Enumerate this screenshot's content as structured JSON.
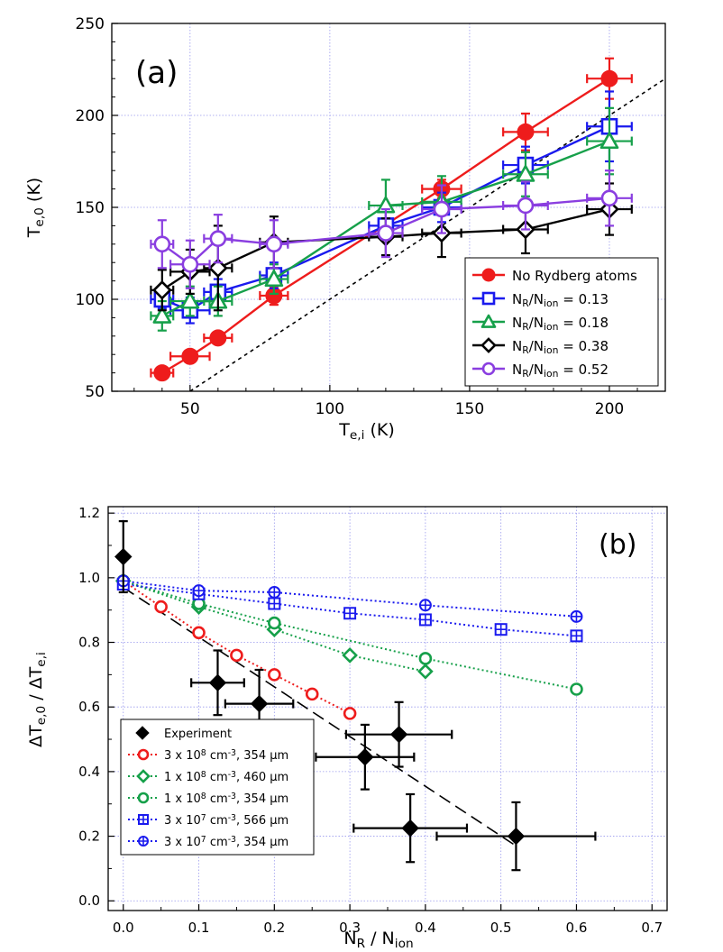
{
  "chart_data": [
    {
      "type": "scatter",
      "panel_label": "(a)",
      "xlabel": {
        "main": "T",
        "sub": "e,i",
        "unit": " (K)"
      },
      "ylabel": {
        "main": "T",
        "sub": "e,0",
        "unit": " (K)"
      },
      "xlim": [
        22,
        220
      ],
      "ylim": [
        50,
        250
      ],
      "xticks": [
        50,
        100,
        150,
        200
      ],
      "yticks": [
        50,
        100,
        150,
        200,
        250
      ],
      "grid": true,
      "legend_position": "bottom-right",
      "reference_line": {
        "style": "dashed",
        "slope": 1,
        "intercept": 0
      },
      "series": [
        {
          "name": "No Rydberg atoms",
          "label_parts": [
            "No Rydberg atoms"
          ],
          "color": "#ee1c1c",
          "marker": "circle-filled",
          "points": [
            {
              "x": 40,
              "y": 60,
              "xerr": 4,
              "yerr": 3
            },
            {
              "x": 50,
              "y": 69,
              "xerr": 7,
              "yerr": 3
            },
            {
              "x": 60,
              "y": 79,
              "xerr": 5,
              "yerr": 3
            },
            {
              "x": 80,
              "y": 102,
              "xerr": 5,
              "yerr": 5
            },
            {
              "x": 140,
              "y": 160,
              "xerr": 7,
              "yerr": 5
            },
            {
              "x": 170,
              "y": 191,
              "xerr": 8,
              "yerr": 10
            },
            {
              "x": 200,
              "y": 220,
              "xerr": 8,
              "yerr": 11
            }
          ]
        },
        {
          "name": "N_R/N_ion = 0.13",
          "label_parts": [
            "N",
            "R",
            "/N",
            "ion",
            " = 0.13"
          ],
          "color": "#1a1aee",
          "marker": "square-open",
          "points": [
            {
              "x": 40,
              "y": 100,
              "xerr": 4,
              "yerr": 5
            },
            {
              "x": 50,
              "y": 94,
              "xerr": 7,
              "yerr": 7
            },
            {
              "x": 60,
              "y": 104,
              "xerr": 5,
              "yerr": 7
            },
            {
              "x": 80,
              "y": 113,
              "xerr": 5,
              "yerr": 7
            },
            {
              "x": 120,
              "y": 140,
              "xerr": 6,
              "yerr": 8
            },
            {
              "x": 140,
              "y": 150,
              "xerr": 7,
              "yerr": 8
            },
            {
              "x": 170,
              "y": 173,
              "xerr": 8,
              "yerr": 10
            },
            {
              "x": 200,
              "y": 194,
              "xerr": 8,
              "yerr": 19
            }
          ]
        },
        {
          "name": "N_R/N_ion = 0.18",
          "label_parts": [
            "N",
            "R",
            "/N",
            "ion",
            " = 0.18"
          ],
          "color": "#16a04a",
          "marker": "triangle-open",
          "points": [
            {
              "x": 40,
              "y": 91,
              "xerr": 4,
              "yerr": 8
            },
            {
              "x": 50,
              "y": 99,
              "xerr": 7,
              "yerr": 8
            },
            {
              "x": 60,
              "y": 99,
              "xerr": 5,
              "yerr": 8
            },
            {
              "x": 80,
              "y": 111,
              "xerr": 5,
              "yerr": 8
            },
            {
              "x": 120,
              "y": 151,
              "xerr": 6,
              "yerr": 14
            },
            {
              "x": 140,
              "y": 153,
              "xerr": 7,
              "yerr": 14
            },
            {
              "x": 170,
              "y": 168,
              "xerr": 8,
              "yerr": 12
            },
            {
              "x": 200,
              "y": 186,
              "xerr": 8,
              "yerr": 18
            }
          ]
        },
        {
          "name": "N_R/N_ion = 0.38",
          "label_parts": [
            "N",
            "R",
            "/N",
            "ion",
            " = 0.38"
          ],
          "color": "#000000",
          "marker": "diamond-open",
          "points": [
            {
              "x": 40,
              "y": 105,
              "xerr": 4,
              "yerr": 11
            },
            {
              "x": 50,
              "y": 115,
              "xerr": 7,
              "yerr": 12
            },
            {
              "x": 60,
              "y": 117,
              "xerr": 5,
              "yerr": 23
            },
            {
              "x": 80,
              "y": 131,
              "xerr": 5,
              "yerr": 14
            },
            {
              "x": 120,
              "y": 134,
              "xerr": 6,
              "yerr": 10
            },
            {
              "x": 140,
              "y": 136,
              "xerr": 7,
              "yerr": 13
            },
            {
              "x": 170,
              "y": 138,
              "xerr": 8,
              "yerr": 13
            },
            {
              "x": 200,
              "y": 149,
              "xerr": 8,
              "yerr": 14
            }
          ]
        },
        {
          "name": "N_R/N_ion = 0.52",
          "label_parts": [
            "N",
            "R",
            "/N",
            "ion",
            " = 0.52"
          ],
          "color": "#8a3ee0",
          "marker": "circle-open",
          "points": [
            {
              "x": 40,
              "y": 130,
              "xerr": 4,
              "yerr": 13
            },
            {
              "x": 50,
              "y": 119,
              "xerr": 7,
              "yerr": 13
            },
            {
              "x": 60,
              "y": 133,
              "xerr": 5,
              "yerr": 13
            },
            {
              "x": 80,
              "y": 130,
              "xerr": 5,
              "yerr": 13
            },
            {
              "x": 120,
              "y": 136,
              "xerr": 6,
              "yerr": 13
            },
            {
              "x": 140,
              "y": 149,
              "xerr": 7,
              "yerr": 13
            },
            {
              "x": 170,
              "y": 151,
              "xerr": 8,
              "yerr": 13
            },
            {
              "x": 200,
              "y": 155,
              "xerr": 8,
              "yerr": 15
            }
          ]
        }
      ]
    },
    {
      "type": "scatter",
      "panel_label": "(b)",
      "xlabel": {
        "parts": [
          "N",
          "R",
          " / N",
          "ion"
        ]
      },
      "ylabel": {
        "parts": [
          "ΔT",
          "e,0",
          " / ΔT",
          "e,i"
        ]
      },
      "xlim": [
        -0.02,
        0.72
      ],
      "ylim": [
        -0.03,
        1.22
      ],
      "xticks": [
        "0.0",
        "0.1",
        "0.2",
        "0.3",
        "0.4",
        "0.5",
        "0.6",
        "0.7"
      ],
      "yticks": [
        "0.0",
        "0.2",
        "0.4",
        "0.6",
        "0.8",
        "1.0",
        "1.2"
      ],
      "grid": true,
      "legend_position": "bottom-left",
      "fit_line": {
        "style": "dashed",
        "x": [
          0.0,
          0.52
        ],
        "y": [
          0.97,
          0.17
        ]
      },
      "experiment": {
        "name": "Experiment",
        "color": "#000000",
        "marker": "diamond-filled",
        "points": [
          {
            "x": 0.0,
            "y": 1.065,
            "xerr": 0.0,
            "yerr": 0.11
          },
          {
            "x": 0.125,
            "y": 0.675,
            "xerr": 0.035,
            "yerr": 0.1
          },
          {
            "x": 0.18,
            "y": 0.61,
            "xerr": 0.045,
            "yerr": 0.105
          },
          {
            "x": 0.32,
            "y": 0.445,
            "xerr": 0.065,
            "yerr": 0.1
          },
          {
            "x": 0.365,
            "y": 0.515,
            "xerr": 0.07,
            "yerr": 0.1
          },
          {
            "x": 0.38,
            "y": 0.225,
            "xerr": 0.075,
            "yerr": 0.105
          },
          {
            "x": 0.52,
            "y": 0.2,
            "xerr": 0.105,
            "yerr": 0.105
          }
        ]
      },
      "series": [
        {
          "name": "3 x 10^8 cm^-3, 354 μm",
          "label_parts": [
            "3 x 10",
            "8",
            " cm",
            "-3",
            ", 354 μm"
          ],
          "color": "#ee1c1c",
          "marker": "circle-open",
          "x": [
            0.0,
            0.05,
            0.1,
            0.15,
            0.2,
            0.25,
            0.3
          ],
          "y": [
            0.99,
            0.91,
            0.83,
            0.76,
            0.7,
            0.64,
            0.58
          ]
        },
        {
          "name": "1 x 10^8 cm^-3, 460 μm",
          "label_parts": [
            "1 x 10",
            "8",
            " cm",
            "-3",
            ", 460 μm"
          ],
          "color": "#16a04a",
          "marker": "diamond-open",
          "x": [
            0.0,
            0.1,
            0.2,
            0.3,
            0.4
          ],
          "y": [
            0.99,
            0.91,
            0.84,
            0.76,
            0.71
          ]
        },
        {
          "name": "1 x 10^8 cm^-3, 354 μm",
          "label_parts": [
            "1 x 10",
            "8",
            " cm",
            "-3",
            ", 354 μm"
          ],
          "color": "#16a04a",
          "marker": "circle-open",
          "x": [
            0.0,
            0.1,
            0.2,
            0.4,
            0.6
          ],
          "y": [
            0.99,
            0.92,
            0.86,
            0.75,
            0.655
          ]
        },
        {
          "name": "3 x 10^7 cm^-3, 566 μm",
          "label_parts": [
            "3 x 10",
            "7",
            " cm",
            "-3",
            ", 566 μm"
          ],
          "color": "#1a1aee",
          "marker": "square-plus",
          "x": [
            0.0,
            0.1,
            0.2,
            0.3,
            0.4,
            0.5,
            0.6
          ],
          "y": [
            0.98,
            0.95,
            0.92,
            0.89,
            0.87,
            0.84,
            0.82
          ]
        },
        {
          "name": "3 x 10^7 cm^-3, 354 μm",
          "label_parts": [
            "3 x 10",
            "7",
            " cm",
            "-3",
            ", 354 μm"
          ],
          "color": "#1a1aee",
          "marker": "circle-plus",
          "x": [
            0.0,
            0.1,
            0.2,
            0.4,
            0.6
          ],
          "y": [
            0.99,
            0.96,
            0.955,
            0.915,
            0.88
          ]
        }
      ]
    }
  ]
}
